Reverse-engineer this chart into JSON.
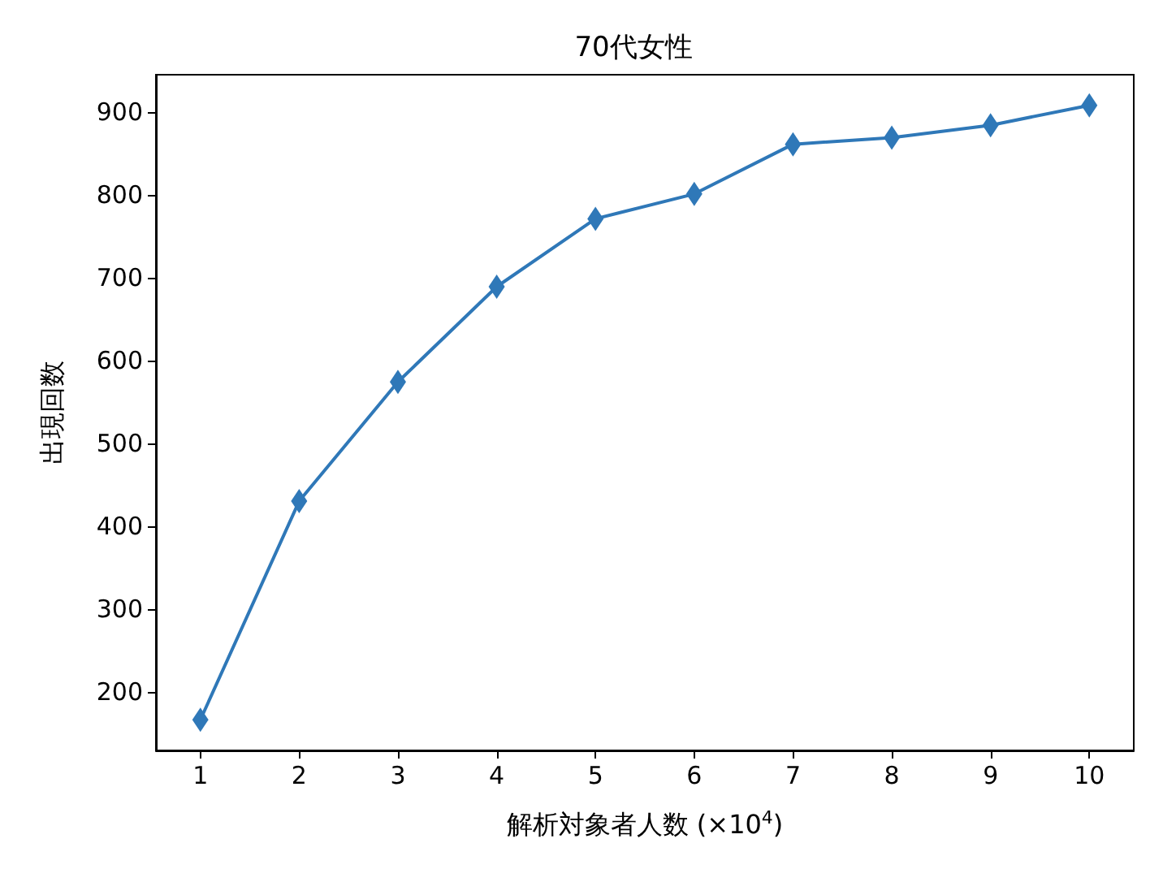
{
  "chart_data": {
    "type": "line",
    "title": "70代女性",
    "xlabel": "解析対象者人数 (×10$^{4}$)",
    "ylabel": "出現回数",
    "x": [
      1,
      2,
      3,
      4,
      5,
      6,
      7,
      8,
      9,
      10
    ],
    "series": [
      {
        "color": "#2f78b8",
        "values": [
          166,
          430,
          574,
          689,
          771,
          801,
          861,
          869,
          884,
          908
        ]
      }
    ],
    "xlim": [
      0.55,
      10.45
    ],
    "xticks": [
      1,
      2,
      3,
      4,
      5,
      6,
      7,
      8,
      9,
      10
    ],
    "ylim": [
      129,
      945
    ],
    "yticks": [
      200,
      300,
      400,
      500,
      600,
      700,
      800,
      900
    ],
    "marker": "diamond",
    "line_style": "solid",
    "grid": false,
    "legend": false
  }
}
